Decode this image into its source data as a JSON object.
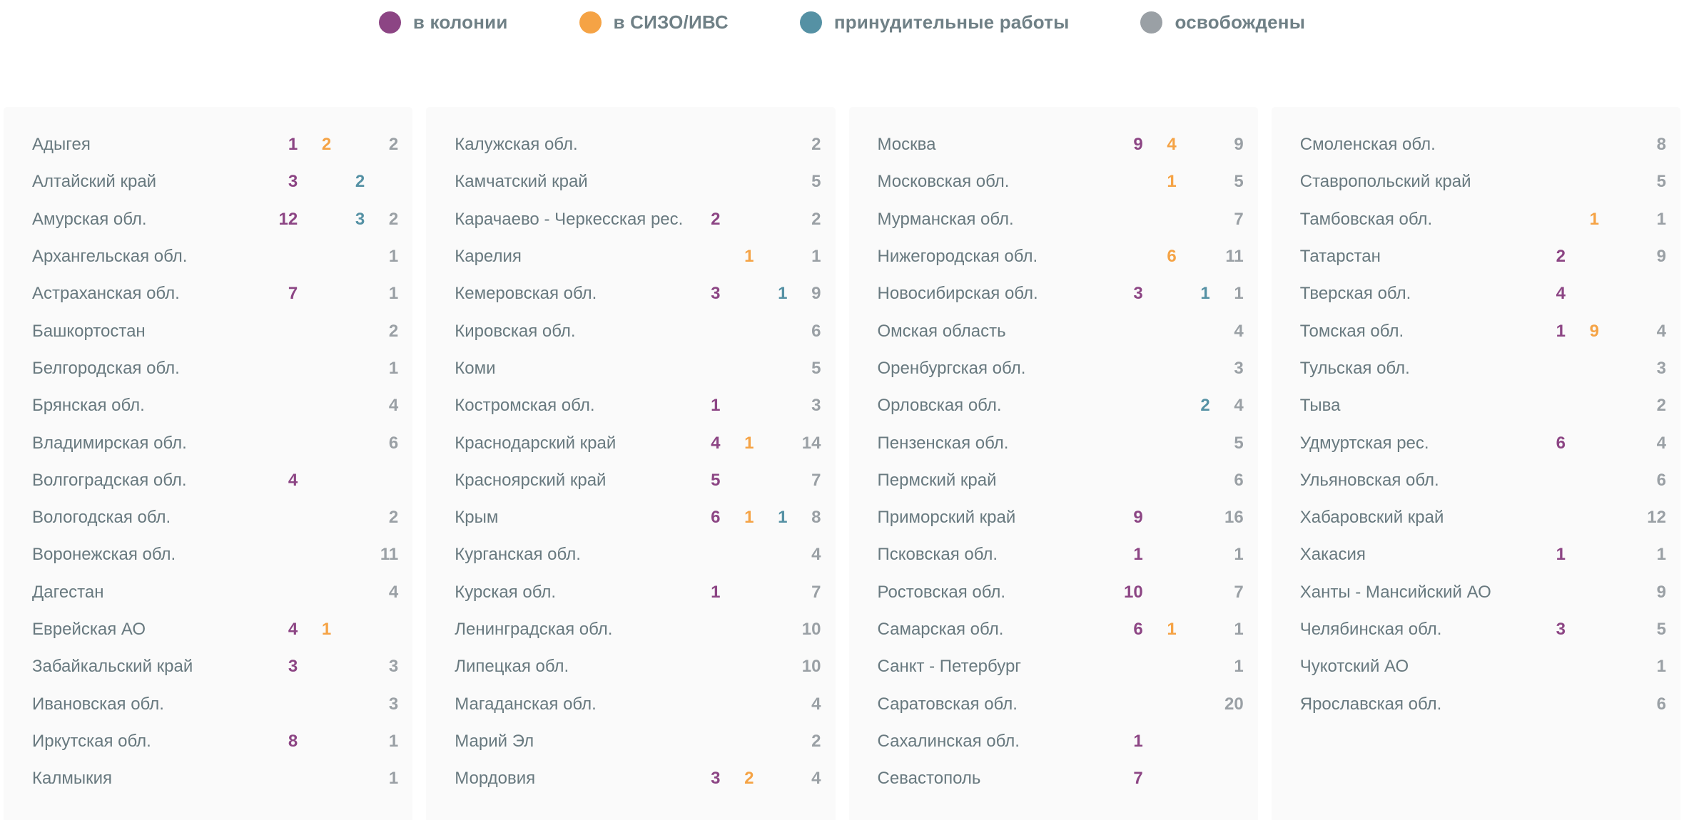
{
  "colors": {
    "colony": "#8c4584",
    "sizo": "#f5a345",
    "forced": "#5591a4",
    "released": "#9aa0a5",
    "card_bg": "#fafafa",
    "page_bg": "#ffffff",
    "region_text": "#68797f",
    "legend_text": "#6f8086"
  },
  "legend": {
    "items": [
      {
        "key": "colony",
        "label": "в колонии"
      },
      {
        "key": "sizo",
        "label": "в СИЗО/ИВС"
      },
      {
        "key": "forced",
        "label": "принудительные работы"
      },
      {
        "key": "released",
        "label": "освобождены"
      }
    ]
  },
  "chart_data": {
    "type": "table",
    "legend": [
      "в колонии",
      "в СИЗО/ИВС",
      "принудительные работы",
      "освобождены"
    ],
    "legend_colors": [
      "#8c4584",
      "#f5a345",
      "#5591a4",
      "#9aa0a5"
    ],
    "row_format": [
      "region",
      "colony",
      "sizo",
      "forced",
      "released"
    ],
    "columns": [
      [
        [
          "Адыгея",
          1,
          2,
          null,
          2
        ],
        [
          "Алтайский край",
          3,
          null,
          2,
          null
        ],
        [
          "Амурская обл.",
          12,
          null,
          3,
          2
        ],
        [
          "Архангельская обл.",
          null,
          null,
          null,
          1
        ],
        [
          "Астраханская обл.",
          7,
          null,
          null,
          1
        ],
        [
          "Башкортостан",
          null,
          null,
          null,
          2
        ],
        [
          "Белгородская обл.",
          null,
          null,
          null,
          1
        ],
        [
          "Брянская обл.",
          null,
          null,
          null,
          4
        ],
        [
          "Владимирская обл.",
          null,
          null,
          null,
          6
        ],
        [
          "Волгоградская обл.",
          4,
          null,
          null,
          null
        ],
        [
          "Вологодская обл.",
          null,
          null,
          null,
          2
        ],
        [
          "Воронежская обл.",
          null,
          null,
          null,
          11
        ],
        [
          "Дагестан",
          null,
          null,
          null,
          4
        ],
        [
          "Еврейская АО",
          4,
          1,
          null,
          null
        ],
        [
          "Забайкальский край",
          3,
          null,
          null,
          3
        ],
        [
          "Ивановская обл.",
          null,
          null,
          null,
          3
        ],
        [
          "Иркутская обл.",
          8,
          null,
          null,
          1
        ],
        [
          "Калмыкия",
          null,
          null,
          null,
          1
        ]
      ],
      [
        [
          "Калужская обл.",
          null,
          null,
          null,
          2
        ],
        [
          "Камчатский край",
          null,
          null,
          null,
          5
        ],
        [
          "Карачаево - Черкесская рес.",
          2,
          null,
          null,
          2
        ],
        [
          "Карелия",
          null,
          1,
          null,
          1
        ],
        [
          "Кемеровская обл.",
          3,
          null,
          1,
          9
        ],
        [
          "Кировская обл.",
          null,
          null,
          null,
          6
        ],
        [
          "Коми",
          null,
          null,
          null,
          5
        ],
        [
          "Костромская обл.",
          1,
          null,
          null,
          3
        ],
        [
          "Краснодарский край",
          4,
          1,
          null,
          14
        ],
        [
          "Красноярский край",
          5,
          null,
          null,
          7
        ],
        [
          "Крым",
          6,
          1,
          1,
          8
        ],
        [
          "Курганская обл.",
          null,
          null,
          null,
          4
        ],
        [
          "Курская обл.",
          1,
          null,
          null,
          7
        ],
        [
          "Ленинградская обл.",
          null,
          null,
          null,
          10
        ],
        [
          "Липецкая обл.",
          null,
          null,
          null,
          10
        ],
        [
          "Магаданская обл.",
          null,
          null,
          null,
          4
        ],
        [
          "Марий Эл",
          null,
          null,
          null,
          2
        ],
        [
          "Мордовия",
          3,
          2,
          null,
          4
        ]
      ],
      [
        [
          "Москва",
          9,
          4,
          null,
          9
        ],
        [
          "Московская обл.",
          null,
          1,
          null,
          5
        ],
        [
          "Мурманская обл.",
          null,
          null,
          null,
          7
        ],
        [
          "Нижегородская обл.",
          null,
          6,
          null,
          11
        ],
        [
          "Новосибирская обл.",
          3,
          null,
          1,
          1
        ],
        [
          "Омская область",
          null,
          null,
          null,
          4
        ],
        [
          "Оренбургская обл.",
          null,
          null,
          null,
          3
        ],
        [
          "Орловская обл.",
          null,
          null,
          2,
          4
        ],
        [
          "Пензенская обл.",
          null,
          null,
          null,
          5
        ],
        [
          "Пермский край",
          null,
          null,
          null,
          6
        ],
        [
          "Приморский край",
          9,
          null,
          null,
          16
        ],
        [
          "Псковская обл.",
          1,
          null,
          null,
          1
        ],
        [
          "Ростовская обл.",
          10,
          null,
          null,
          7
        ],
        [
          "Самарская обл.",
          6,
          1,
          null,
          1
        ],
        [
          "Санкт - Петербург",
          null,
          null,
          null,
          1
        ],
        [
          "Саратовская обл.",
          null,
          null,
          null,
          20
        ],
        [
          "Сахалинская обл.",
          1,
          null,
          null,
          null
        ],
        [
          "Севастополь",
          7,
          null,
          null,
          null
        ]
      ],
      [
        [
          "Смоленская обл.",
          null,
          null,
          null,
          8
        ],
        [
          "Ставропольский край",
          null,
          null,
          null,
          5
        ],
        [
          "Тамбовская обл.",
          null,
          1,
          null,
          1
        ],
        [
          "Татарстан",
          2,
          null,
          null,
          9
        ],
        [
          "Тверская обл.",
          4,
          null,
          null,
          null
        ],
        [
          "Томская обл.",
          1,
          9,
          null,
          4
        ],
        [
          "Тульская обл.",
          null,
          null,
          null,
          3
        ],
        [
          "Тыва",
          null,
          null,
          null,
          2
        ],
        [
          "Удмуртская рес.",
          6,
          null,
          null,
          4
        ],
        [
          "Ульяновская обл.",
          null,
          null,
          null,
          6
        ],
        [
          "Хабаровский край",
          null,
          null,
          null,
          12
        ],
        [
          "Хакасия",
          1,
          null,
          null,
          1
        ],
        [
          "Ханты - Мансийский АО",
          null,
          null,
          null,
          9
        ],
        [
          "Челябинская обл.",
          3,
          null,
          null,
          5
        ],
        [
          "Чукотский АО",
          null,
          null,
          null,
          1
        ],
        [
          "Ярославская обл.",
          null,
          null,
          null,
          6
        ]
      ]
    ]
  }
}
